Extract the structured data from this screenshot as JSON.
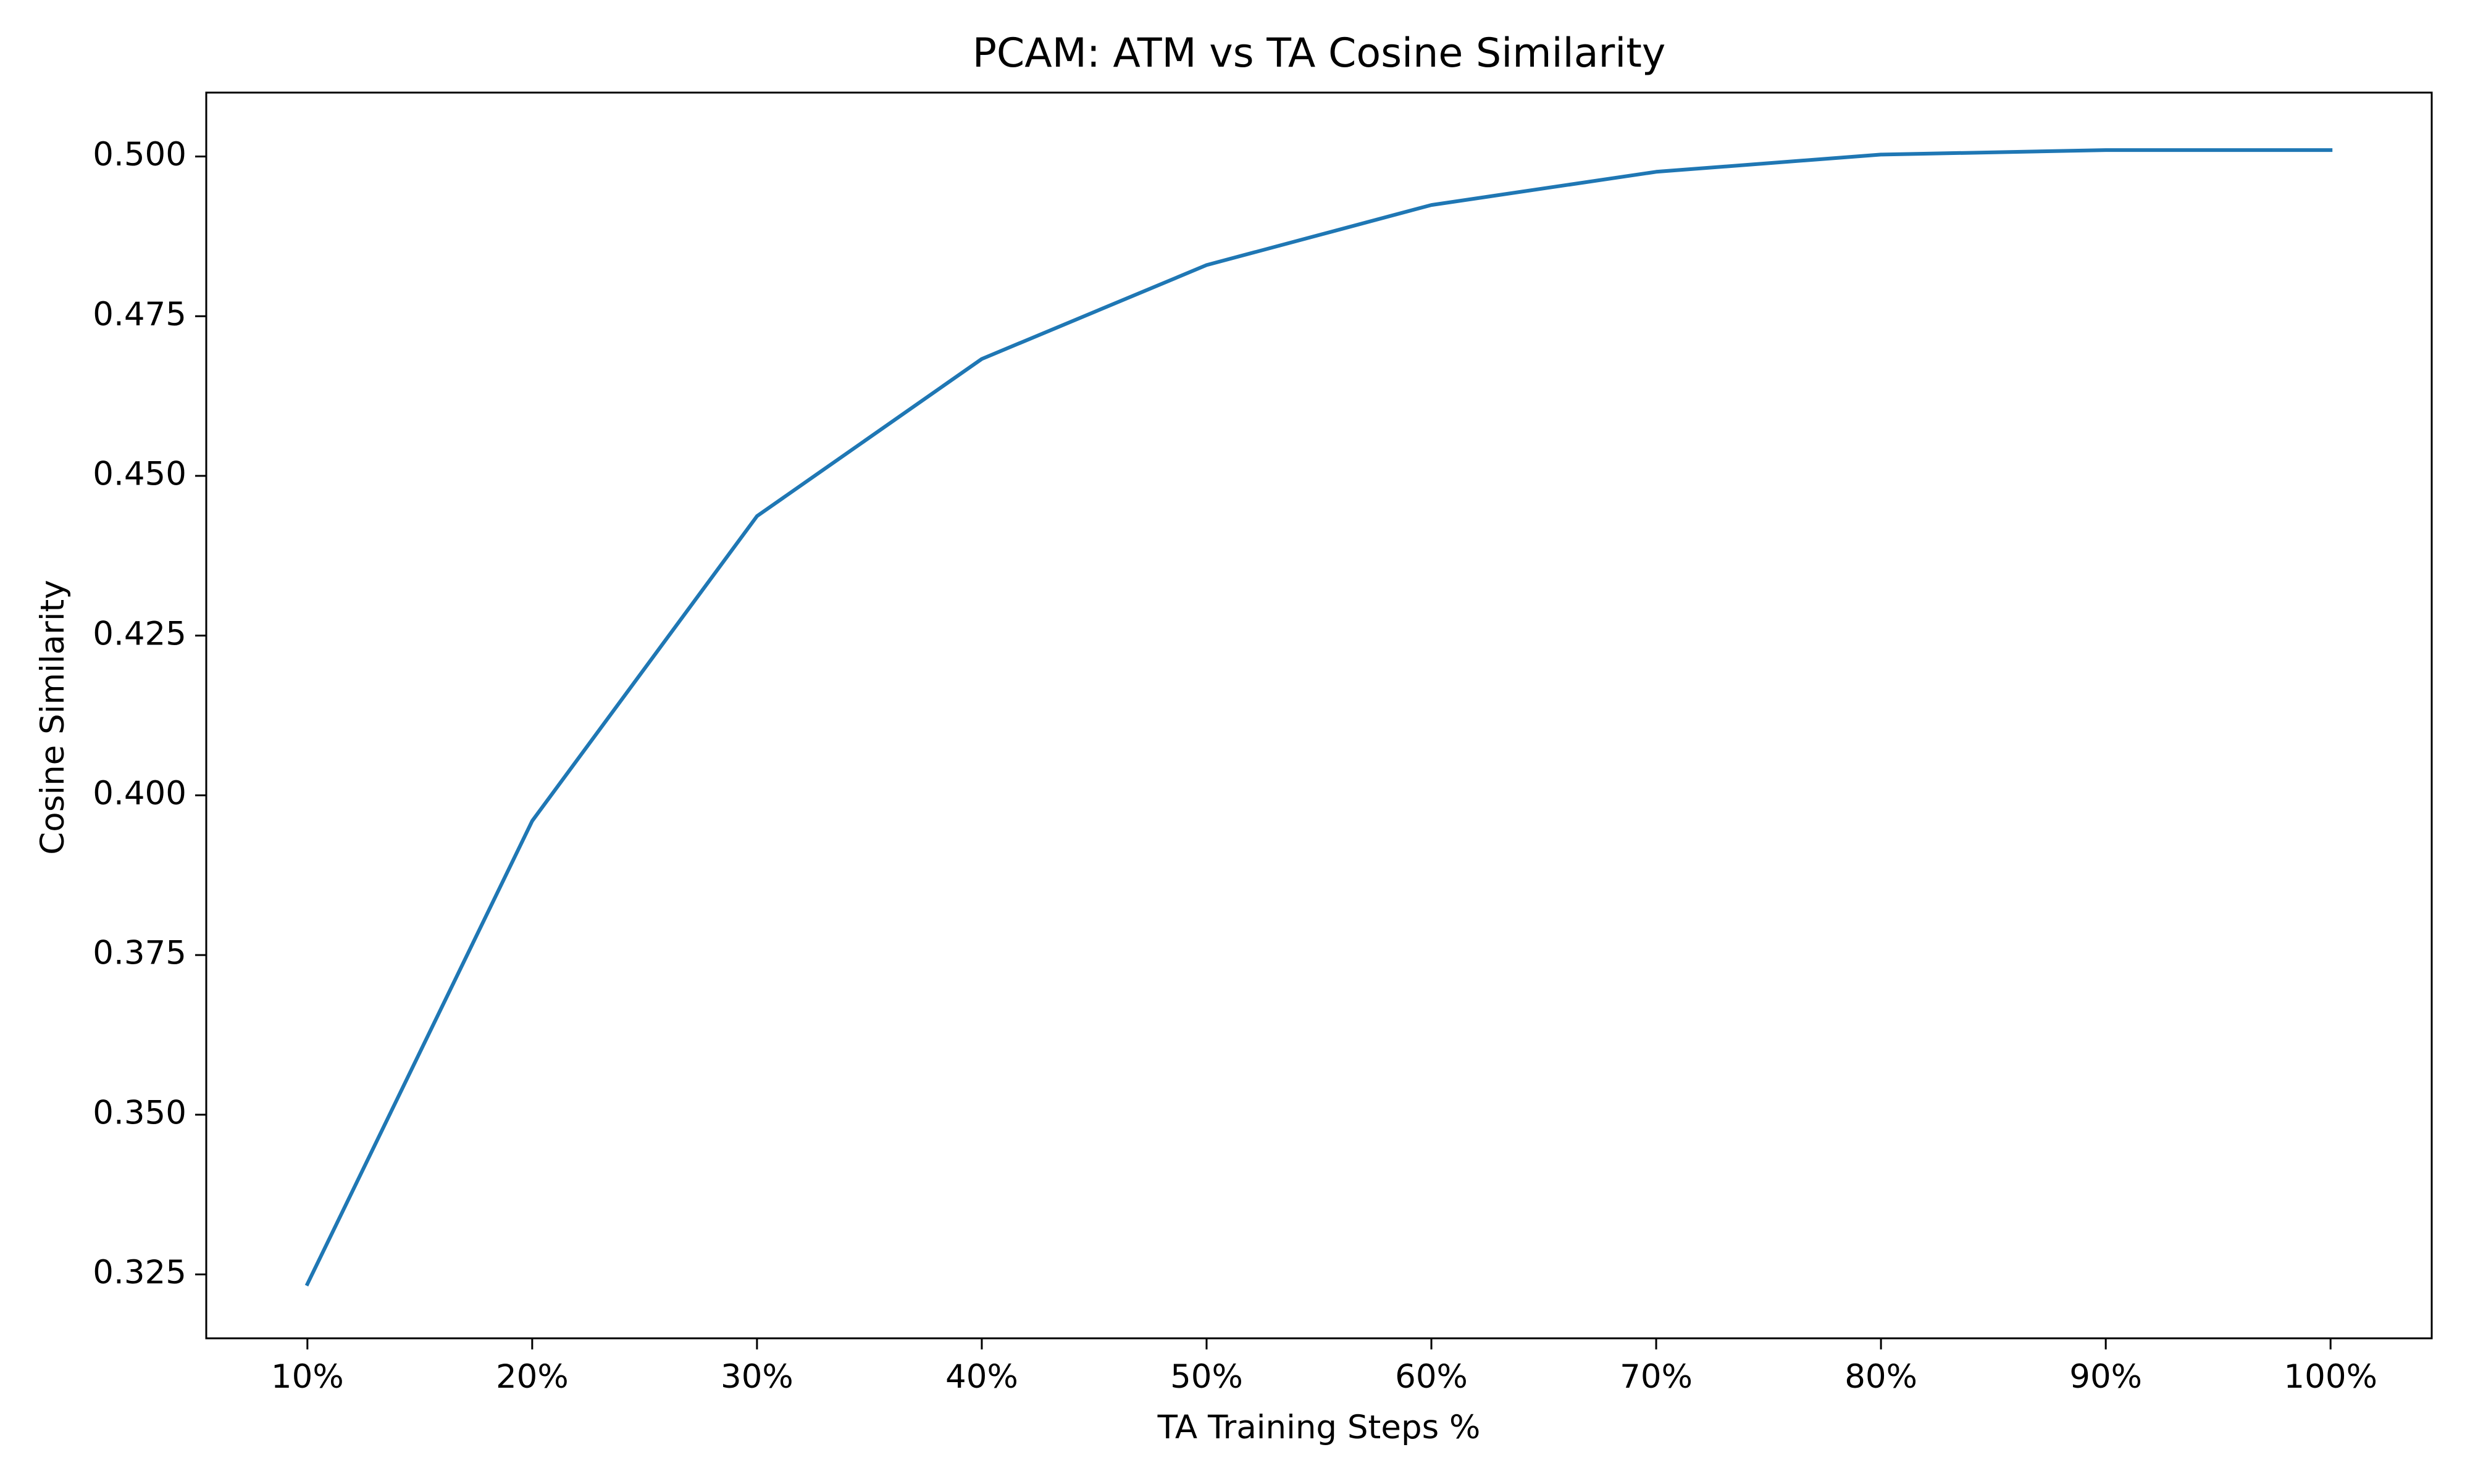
{
  "chart_data": {
    "type": "line",
    "title": "PCAM: ATM vs TA Cosine Similarity",
    "xlabel": "TA Training Steps %",
    "ylabel": "Cosine Similarity",
    "categories": [
      "10%",
      "20%",
      "30%",
      "40%",
      "50%",
      "60%",
      "70%",
      "80%",
      "90%",
      "100%"
    ],
    "x": [
      10,
      20,
      30,
      40,
      50,
      60,
      70,
      80,
      90,
      100
    ],
    "series": [
      {
        "values": [
          0.3235,
          0.396,
          0.4437,
          0.4683,
          0.483,
          0.4924,
          0.4976,
          0.5003,
          0.501,
          0.501
        ],
        "color": "#1f77b4"
      }
    ],
    "xlim": [
      5.5,
      104.5
    ],
    "ylim": [
      0.315,
      0.51
    ],
    "yticks": [
      0.325,
      0.35,
      0.375,
      0.4,
      0.425,
      0.45,
      0.475,
      0.5
    ],
    "ytick_labels": [
      "0.325",
      "0.350",
      "0.375",
      "0.400",
      "0.425",
      "0.450",
      "0.475",
      "0.500"
    ],
    "grid": false,
    "legend": "none"
  }
}
